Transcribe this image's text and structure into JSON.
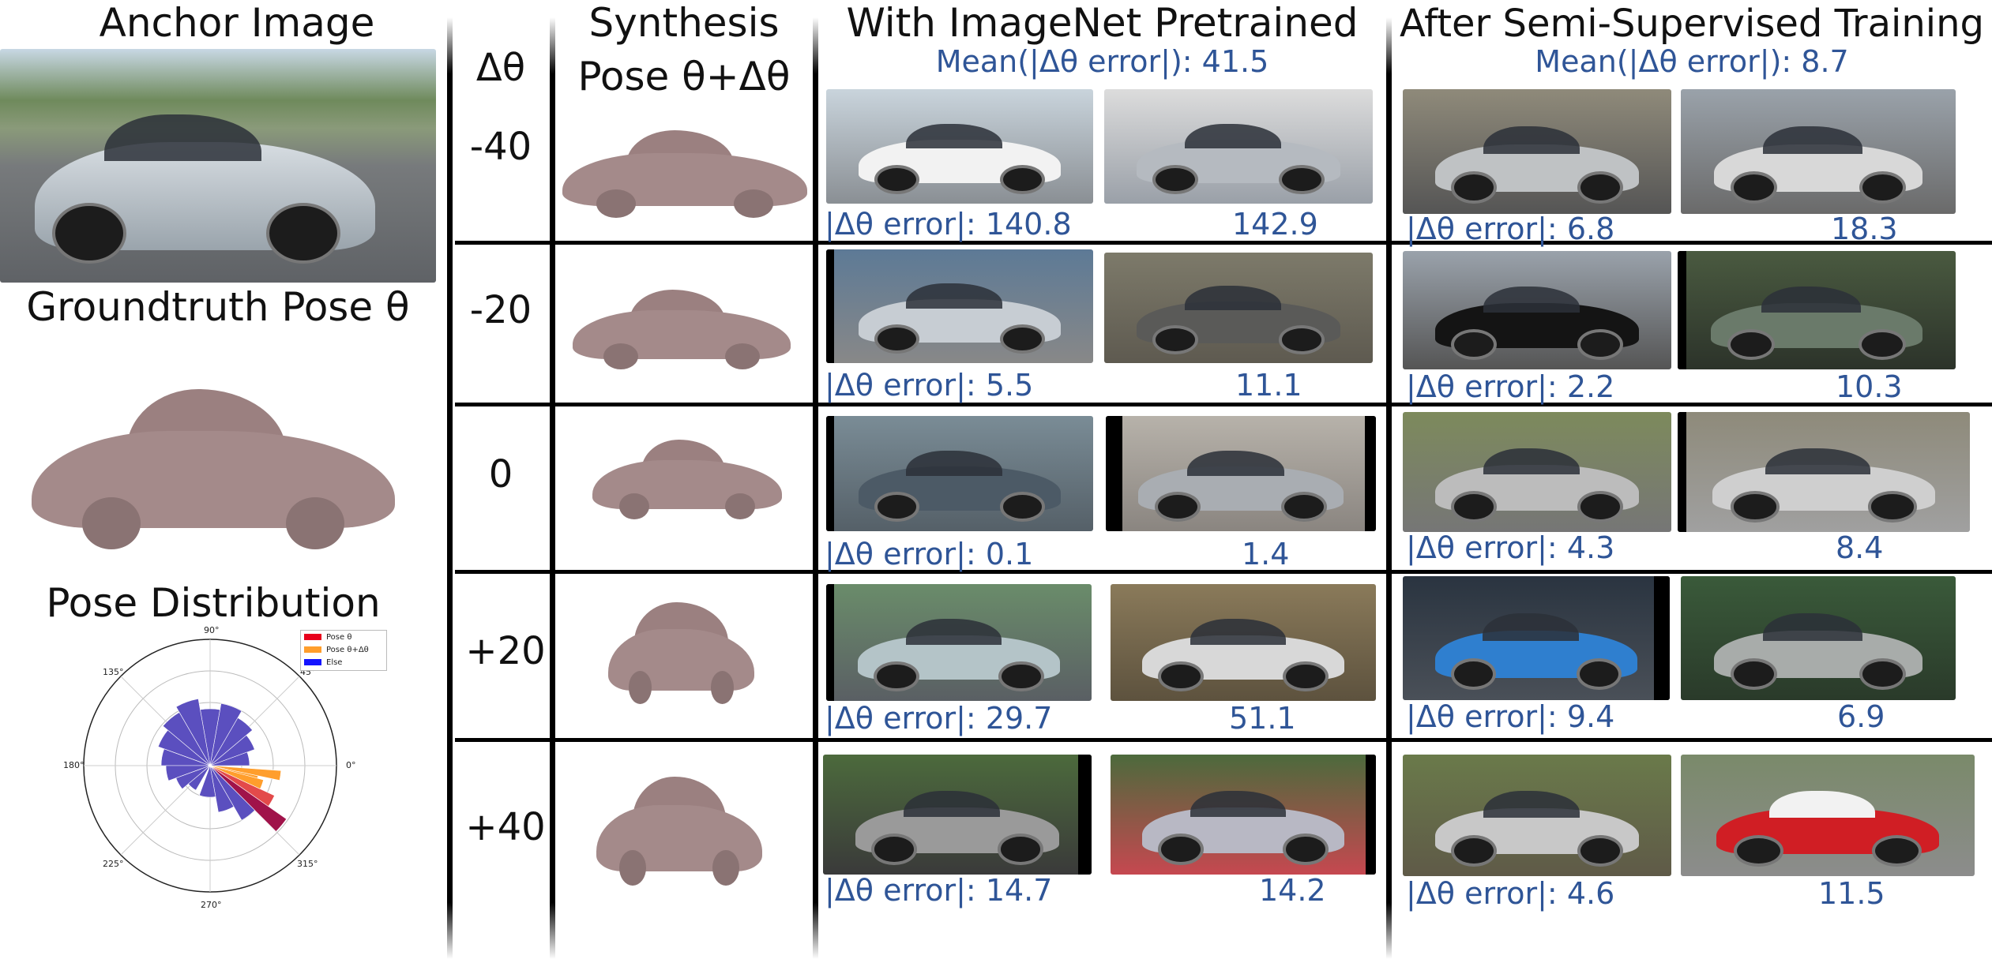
{
  "left": {
    "anchor_title": "Anchor Image",
    "gt_title": "Groundtruth Pose θ",
    "dist_title": "Pose Distribution",
    "legend": [
      {
        "label": "Pose θ",
        "color": "#e8001c"
      },
      {
        "label": "Pose θ+Δθ",
        "color": "#ff9e2c"
      },
      {
        "label": "Else",
        "color": "#1414ff"
      }
    ],
    "angle_ticks": [
      "90°",
      "45°",
      "0°",
      "315°",
      "270°",
      "225°",
      "180°",
      "135°"
    ]
  },
  "headers": {
    "dtheta": "Δθ",
    "synth_line1": "Synthesis",
    "synth_line2": "Pose θ+Δθ",
    "imagenet_title": "With ImageNet Pretrained",
    "imagenet_mean": "Mean(|Δθ error|): 41.5",
    "semi_title": "After Semi-Supervised Training",
    "semi_mean": "Mean(|Δθ error|): 8.7"
  },
  "error_label": "|Δθ error|:",
  "rows": [
    {
      "dtheta": "-40",
      "imagenet": [
        "140.8",
        "142.9"
      ],
      "semi": [
        "6.8",
        "18.3"
      ]
    },
    {
      "dtheta": "-20",
      "imagenet": [
        "5.5",
        "11.1"
      ],
      "semi": [
        "2.2",
        "10.3"
      ]
    },
    {
      "dtheta": "0",
      "imagenet": [
        "0.1",
        "1.4"
      ],
      "semi": [
        "4.3",
        "8.4"
      ]
    },
    {
      "dtheta": "+20",
      "imagenet": [
        "29.7",
        "51.1"
      ],
      "semi": [
        "9.4",
        "6.9"
      ]
    },
    {
      "dtheta": "+40",
      "imagenet": [
        "14.7",
        "14.2"
      ],
      "semi": [
        "4.6",
        "11.5"
      ]
    }
  ],
  "photo_colors": {
    "r0": [
      [
        "#c9d4dc",
        "#f2f2f2"
      ],
      [
        "#9aa0a8",
        "#b5bac0"
      ],
      [
        "#8f8a7a",
        "#bfc2c4"
      ],
      [
        "#c6c8cc",
        "#d8d8d8"
      ]
    ],
    "r1": [
      [
        "#5d7a96",
        "#c7cdd3"
      ],
      [
        "#7d7a6a",
        "#5a5a58"
      ],
      [
        "#9aa2ab",
        "#141414"
      ],
      [
        "#4a5a40",
        "#6a7a6a"
      ]
    ],
    "r2": [
      [
        "#7a8c96",
        "#4c5a66"
      ],
      [
        "#b7b2aa",
        "#a9adb2"
      ],
      [
        "#7d8a5c",
        "#bcbcbc"
      ],
      [
        "#8e8a7a",
        "#cfcfcf"
      ]
    ],
    "r3": [
      [
        "#6a8c6a",
        "#b4c4c8"
      ],
      [
        "#8a7a5a",
        "#d8d8d8"
      ],
      [
        "#2a3440",
        "#2f7fcf"
      ],
      [
        "#3a5a3a",
        "#a8acaa"
      ]
    ],
    "r4": [
      [
        "#4c6a3c",
        "#9a9a9a"
      ],
      [
        "#4c6a3c",
        "#b8b8c4"
      ],
      [
        "#6a7a4a",
        "#c8c8c8"
      ],
      [
        "#7a8a6a",
        "#d01e24"
      ]
    ]
  }
}
